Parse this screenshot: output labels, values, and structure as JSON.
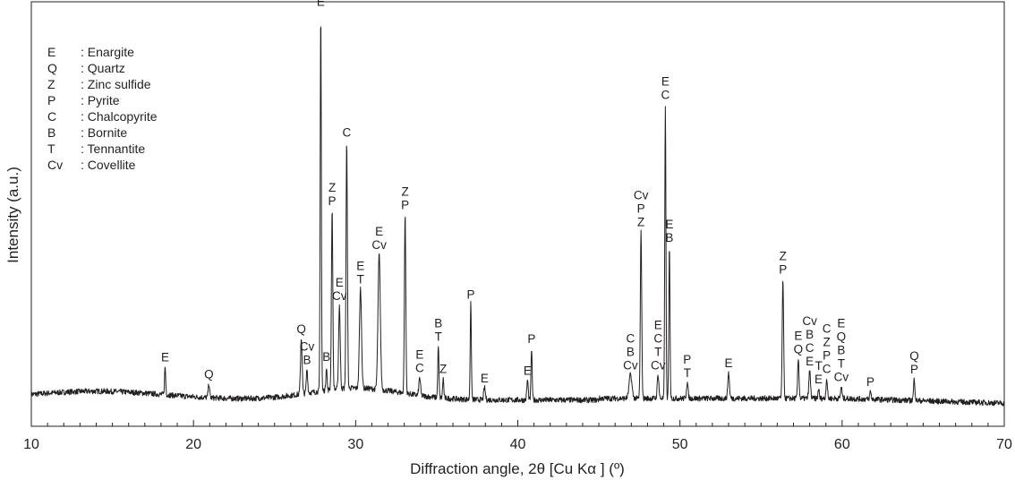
{
  "chart_data": {
    "type": "line",
    "xlabel": "Diffraction angle, 2θ [Cu Kα ] (º)",
    "ylabel": "Intensity (a.u.)",
    "xlim": [
      10,
      70
    ],
    "ylim": [
      0,
      1
    ],
    "x_ticks": [
      10,
      20,
      30,
      40,
      50,
      60,
      70
    ],
    "y_ticks": [],
    "line_color": "#231f20",
    "grid": false,
    "legend_placement": "top-left",
    "legend": [
      {
        "code": "E",
        "name": "Enargite"
      },
      {
        "code": "Q",
        "name": "Quartz"
      },
      {
        "code": "Z",
        "name": "Zinc sulfide"
      },
      {
        "code": "P",
        "name": "Pyrite"
      },
      {
        "code": "C",
        "name": "Chalcopyrite"
      },
      {
        "code": "B",
        "name": "Bornite"
      },
      {
        "code": "T",
        "name": "Tennantite"
      },
      {
        "code": "Cv",
        "name": "Covellite"
      }
    ],
    "peaks": [
      {
        "x": 18.25,
        "y": 0.07,
        "w": 0.05,
        "labels": [
          "E"
        ]
      },
      {
        "x": 20.95,
        "y": 0.035,
        "w": 0.06,
        "labels": [
          "Q"
        ]
      },
      {
        "x": 26.65,
        "y": 0.14,
        "w": 0.07,
        "labels": [
          "Q"
        ]
      },
      {
        "x": 27.0,
        "y": 0.06,
        "w": 0.06,
        "labels": [
          "Cv",
          "B"
        ]
      },
      {
        "x": 27.85,
        "y": 0.955,
        "w": 0.05,
        "labels": [
          "E"
        ]
      },
      {
        "x": 28.2,
        "y": 0.06,
        "w": 0.05,
        "labels": [
          "B"
        ]
      },
      {
        "x": 28.55,
        "y": 0.45,
        "w": 0.06,
        "labels": [
          "Z",
          "P"
        ]
      },
      {
        "x": 29.0,
        "y": 0.21,
        "w": 0.07,
        "labels": [
          "E",
          "Cv"
        ]
      },
      {
        "x": 29.45,
        "y": 0.62,
        "w": 0.06,
        "labels": [
          "C"
        ]
      },
      {
        "x": 30.3,
        "y": 0.25,
        "w": 0.09,
        "labels": [
          "E",
          "T"
        ]
      },
      {
        "x": 31.45,
        "y": 0.34,
        "w": 0.1,
        "labels": [
          "E",
          "Cv"
        ]
      },
      {
        "x": 33.05,
        "y": 0.45,
        "w": 0.06,
        "labels": [
          "Z",
          "P"
        ]
      },
      {
        "x": 33.95,
        "y": 0.045,
        "w": 0.07,
        "labels": [
          "E",
          "C"
        ]
      },
      {
        "x": 35.1,
        "y": 0.13,
        "w": 0.05,
        "labels": [
          "B",
          "T"
        ]
      },
      {
        "x": 35.4,
        "y": 0.05,
        "w": 0.05,
        "labels": [
          "Z"
        ]
      },
      {
        "x": 37.1,
        "y": 0.24,
        "w": 0.05,
        "labels": [
          "P"
        ]
      },
      {
        "x": 37.95,
        "y": 0.03,
        "w": 0.07,
        "labels": [
          "E"
        ]
      },
      {
        "x": 40.6,
        "y": 0.05,
        "w": 0.06,
        "labels": [
          "E"
        ]
      },
      {
        "x": 40.85,
        "y": 0.13,
        "w": 0.05,
        "labels": [
          "P"
        ]
      },
      {
        "x": 46.95,
        "y": 0.06,
        "w": 0.12,
        "labels": [
          "C",
          "B",
          "Cv"
        ]
      },
      {
        "x": 47.6,
        "y": 0.42,
        "w": 0.06,
        "labels": [
          "Cv",
          "P",
          "Z"
        ]
      },
      {
        "x": 48.65,
        "y": 0.06,
        "w": 0.07,
        "labels": [
          "E",
          "C",
          "T",
          "Cv"
        ]
      },
      {
        "x": 49.1,
        "y": 0.74,
        "w": 0.05,
        "labels": [
          "E",
          "C"
        ]
      },
      {
        "x": 49.35,
        "y": 0.38,
        "w": 0.05,
        "labels": [
          "E",
          "B"
        ]
      },
      {
        "x": 50.45,
        "y": 0.04,
        "w": 0.07,
        "labels": [
          "P",
          "T"
        ]
      },
      {
        "x": 53.0,
        "y": 0.065,
        "w": 0.07,
        "labels": [
          "E"
        ]
      },
      {
        "x": 56.35,
        "y": 0.3,
        "w": 0.06,
        "labels": [
          "Z",
          "P"
        ]
      },
      {
        "x": 57.3,
        "y": 0.1,
        "w": 0.06,
        "labels": [
          "E",
          "Q"
        ]
      },
      {
        "x": 58.0,
        "y": 0.07,
        "w": 0.07,
        "labels": [
          "Cv",
          "B",
          "C",
          "E"
        ]
      },
      {
        "x": 58.55,
        "y": 0.025,
        "w": 0.05,
        "labels": [
          "T",
          "E"
        ]
      },
      {
        "x": 59.05,
        "y": 0.05,
        "w": 0.06,
        "labels": [
          "C",
          "Z",
          "P",
          "C"
        ]
      },
      {
        "x": 59.95,
        "y": 0.03,
        "w": 0.06,
        "labels": [
          "E",
          "Q",
          "B",
          "T",
          "Cv"
        ]
      },
      {
        "x": 61.75,
        "y": 0.02,
        "w": 0.06,
        "labels": [
          "P"
        ]
      },
      {
        "x": 64.45,
        "y": 0.055,
        "w": 0.06,
        "labels": [
          "Q",
          "P"
        ]
      }
    ]
  }
}
